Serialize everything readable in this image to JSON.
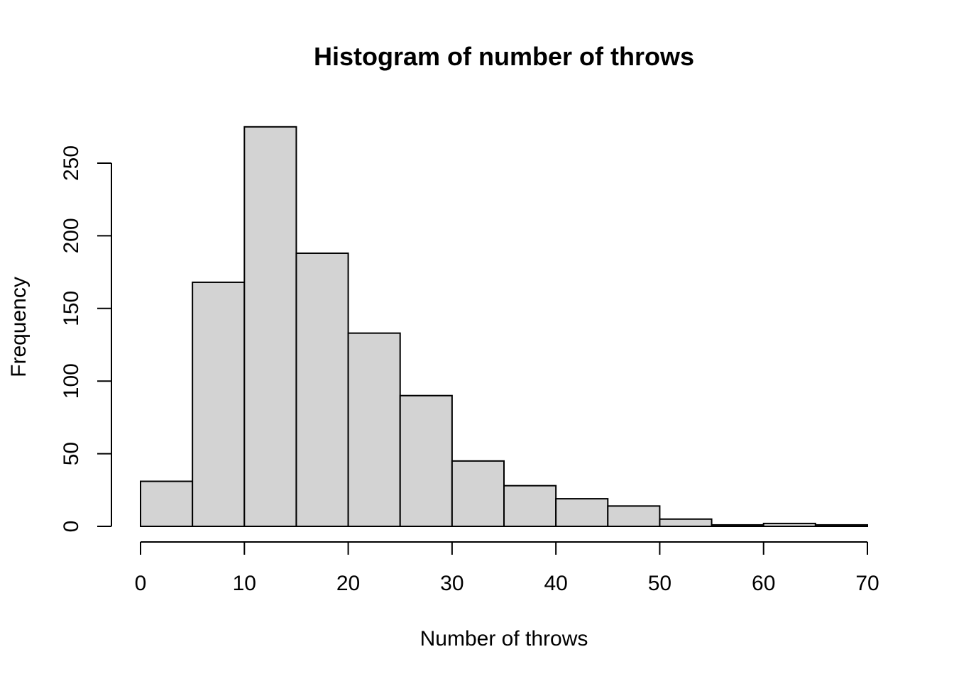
{
  "chart_data": {
    "type": "bar",
    "title": "Histogram of number of throws",
    "xlabel": "Number of throws",
    "ylabel": "Frequency",
    "bins": [
      {
        "start": 0,
        "end": 5,
        "count": 31
      },
      {
        "start": 5,
        "end": 10,
        "count": 168
      },
      {
        "start": 10,
        "end": 15,
        "count": 275
      },
      {
        "start": 15,
        "end": 20,
        "count": 188
      },
      {
        "start": 20,
        "end": 25,
        "count": 133
      },
      {
        "start": 25,
        "end": 30,
        "count": 90
      },
      {
        "start": 30,
        "end": 35,
        "count": 45
      },
      {
        "start": 35,
        "end": 40,
        "count": 28
      },
      {
        "start": 40,
        "end": 45,
        "count": 19
      },
      {
        "start": 45,
        "end": 50,
        "count": 14
      },
      {
        "start": 50,
        "end": 55,
        "count": 5
      },
      {
        "start": 55,
        "end": 60,
        "count": 1
      },
      {
        "start": 60,
        "end": 65,
        "count": 2
      },
      {
        "start": 65,
        "end": 70,
        "count": 1
      }
    ],
    "xlim": [
      0,
      70
    ],
    "ylim": [
      0,
      275
    ],
    "x_ticks": [
      "0",
      "10",
      "20",
      "30",
      "40",
      "50",
      "60",
      "70"
    ],
    "y_ticks": [
      "0",
      "50",
      "100",
      "150",
      "200",
      "250"
    ],
    "grid": false,
    "colors": {
      "bar_fill": "#d3d3d3",
      "bar_stroke": "#000000"
    }
  }
}
